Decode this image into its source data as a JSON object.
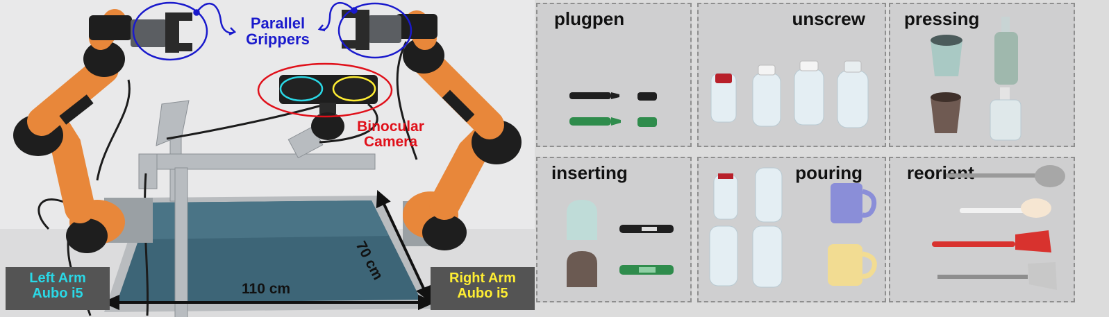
{
  "photo": {
    "grippers_label_line1": "Parallel",
    "grippers_label_line2": "Grippers",
    "camera_label_line1": "Binocular",
    "camera_label_line2": "Camera",
    "left_arm_line1": "Left Arm",
    "left_arm_line2": "Aubo i5",
    "right_arm_line1": "Right Arm",
    "right_arm_line2": "Aubo i5",
    "width_dimension": "110 cm",
    "depth_dimension": "70 cm"
  },
  "tasks": [
    {
      "name": "plugpen"
    },
    {
      "name": "unscrew"
    },
    {
      "name": "pressing"
    },
    {
      "name": "inserting"
    },
    {
      "name": "pouring"
    },
    {
      "name": "reorient"
    }
  ],
  "colors": {
    "gripper_annotation": "#1a1acc",
    "camera_annotation": "#e0101a",
    "left_lens": "#2ad8e6",
    "right_lens": "#ffee33",
    "arm_orange": "#e8873a",
    "table_blue": "#3d6577",
    "label_box": "#545454"
  }
}
